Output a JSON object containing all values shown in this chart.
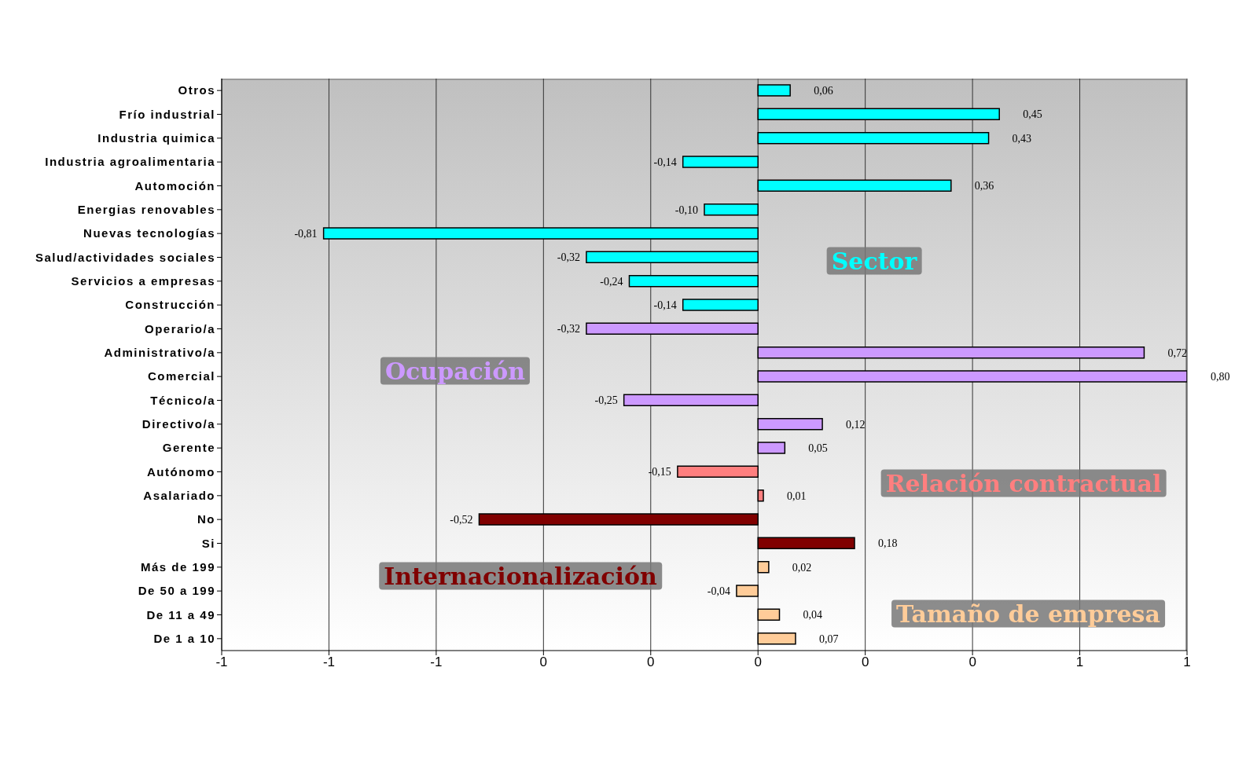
{
  "chart_data": {
    "type": "bar",
    "orientation": "horizontal",
    "stacked": true,
    "grid": "x",
    "categories": [
      "Otros",
      "Frío industrial",
      "Industria quimica",
      "Industria agroalimentaria",
      "Automoción",
      "Energias renovables",
      "Nuevas tecnologías",
      "Salud/actividades sociales",
      "Servicios a empresas",
      "Construcción",
      "Operario/a",
      "Administrativo/a",
      "Comercial",
      "Técnico/a",
      "Directivo/a",
      "Gerente",
      "Autónomo",
      "Asalariado",
      "No",
      "Si",
      "Más de 199",
      "De 50 a 199",
      "De 11 a 49",
      "De 1 a 10"
    ],
    "xlim": [
      -1,
      0.8
    ],
    "xticks": [
      {
        "value": -1,
        "label": "-1"
      },
      {
        "value": -0.8,
        "label": "-1"
      },
      {
        "value": -0.6,
        "label": "-1"
      },
      {
        "value": -0.4,
        "label": "0"
      },
      {
        "value": -0.2,
        "label": "0"
      },
      {
        "value": 0,
        "label": "0"
      },
      {
        "value": 0.2,
        "label": "0"
      },
      {
        "value": 0.4,
        "label": "0"
      },
      {
        "value": 0.6,
        "label": "1"
      },
      {
        "value": 0.8,
        "label": "1"
      }
    ],
    "series": [
      {
        "name": "Sector",
        "color": "#00ffff",
        "values": [
          0.06,
          0.45,
          0.43,
          -0.14,
          0.36,
          -0.1,
          -0.81,
          -0.32,
          -0.24,
          -0.14,
          null,
          null,
          null,
          null,
          null,
          null,
          null,
          null,
          null,
          null,
          null,
          null,
          null,
          null
        ],
        "value_labels": [
          "0,06",
          "0,45",
          "0,43",
          "-0,14",
          "0,36",
          "-0,10",
          "-0,81",
          "-0,32",
          "-0,24",
          "-0,14",
          null,
          null,
          null,
          null,
          null,
          null,
          null,
          null,
          null,
          null,
          null,
          null,
          null,
          null
        ]
      },
      {
        "name": "Ocupación",
        "color": "#cc99ff",
        "values": [
          null,
          null,
          null,
          null,
          null,
          null,
          null,
          null,
          null,
          null,
          -0.32,
          0.72,
          0.8,
          -0.25,
          0.12,
          0.05,
          null,
          null,
          null,
          null,
          null,
          null,
          null,
          null
        ],
        "value_labels": [
          null,
          null,
          null,
          null,
          null,
          null,
          null,
          null,
          null,
          null,
          "-0,32",
          "0,72",
          "0,80",
          "-0,25",
          "0,12",
          "0,05",
          null,
          null,
          null,
          null,
          null,
          null,
          null,
          null
        ]
      },
      {
        "name": "Relación contractual",
        "color": "#ff7f7f",
        "values": [
          null,
          null,
          null,
          null,
          null,
          null,
          null,
          null,
          null,
          null,
          null,
          null,
          null,
          null,
          null,
          null,
          -0.15,
          0.01,
          null,
          null,
          null,
          null,
          null,
          null
        ],
        "value_labels": [
          null,
          null,
          null,
          null,
          null,
          null,
          null,
          null,
          null,
          null,
          null,
          null,
          null,
          null,
          null,
          null,
          "-0,15",
          "0,01",
          null,
          null,
          null,
          null,
          null,
          null
        ]
      },
      {
        "name": "Internacionalización",
        "color": "#800000",
        "values": [
          null,
          null,
          null,
          null,
          null,
          null,
          null,
          null,
          null,
          null,
          null,
          null,
          null,
          null,
          null,
          null,
          null,
          null,
          -0.52,
          0.18,
          null,
          null,
          null,
          null
        ],
        "value_labels": [
          null,
          null,
          null,
          null,
          null,
          null,
          null,
          null,
          null,
          null,
          null,
          null,
          null,
          null,
          null,
          null,
          null,
          null,
          "-0,52",
          "0,18",
          null,
          null,
          null,
          null
        ]
      },
      {
        "name": "Tamaño de empresa",
        "color": "#ffcc99",
        "values": [
          null,
          null,
          null,
          null,
          null,
          null,
          null,
          null,
          null,
          null,
          null,
          null,
          null,
          null,
          null,
          null,
          null,
          null,
          null,
          null,
          0.02,
          -0.04,
          0.04,
          0.07
        ],
        "value_labels": [
          null,
          null,
          null,
          null,
          null,
          null,
          null,
          null,
          null,
          null,
          null,
          null,
          null,
          null,
          null,
          null,
          null,
          null,
          null,
          null,
          "0,02",
          "-0,04",
          "0,04",
          "0,07"
        ]
      }
    ]
  }
}
